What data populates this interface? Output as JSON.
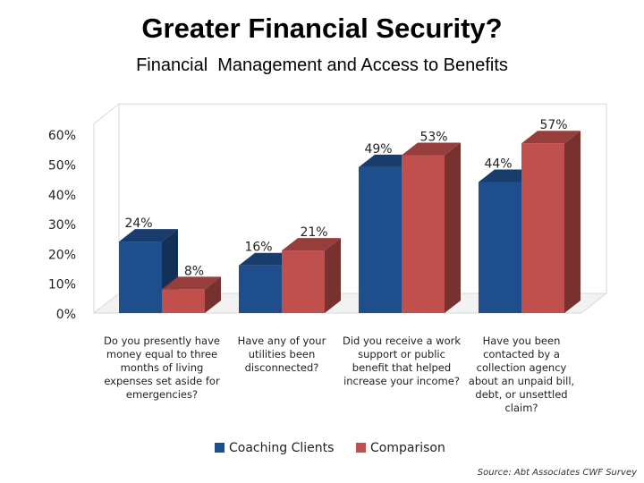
{
  "header": {
    "title": "Greater Financial Security?",
    "subtitle": "Financial  Management and Access to Benefits"
  },
  "source": "Source: Abt Associates CWF Survey",
  "colors": {
    "coaching": "#1f4e8c",
    "comparison": "#c0504d"
  },
  "chart_data": {
    "type": "bar",
    "style": "3d-clustered",
    "categories": [
      "Do you presently have money equal to three months of living expenses set aside for emergencies?",
      "Have any of your utilities been disconnected?",
      "Did you receive a work support or public benefit that helped increase your income?",
      "Have you been contacted by a collection agency about an unpaid bill, debt, or unsettled claim?"
    ],
    "category_lines": [
      [
        "Do you presently have",
        "money equal to three",
        "months of living",
        "expenses set aside for",
        "emergencies?"
      ],
      [
        "Have any of your",
        "utilities been",
        "disconnected?"
      ],
      [
        "Did you receive a work",
        "support or public",
        "benefit that helped",
        "increase your income?"
      ],
      [
        "Have you been",
        "contacted by a",
        "collection agency",
        "about an unpaid bill,",
        "debt, or unsettled",
        "claim?"
      ]
    ],
    "series": [
      {
        "name": "Coaching Clients",
        "values": [
          24,
          16,
          49,
          44
        ],
        "labels": [
          "24%",
          "16%",
          "49%",
          "44%"
        ]
      },
      {
        "name": "Comparison",
        "values": [
          8,
          21,
          53,
          57
        ],
        "labels": [
          "8%",
          "21%",
          "53%",
          "57%"
        ]
      }
    ],
    "yticks": [
      "0%",
      "10%",
      "20%",
      "30%",
      "40%",
      "50%",
      "60%"
    ],
    "ylim": [
      0,
      60
    ],
    "grid": false,
    "legend": "bottom"
  }
}
